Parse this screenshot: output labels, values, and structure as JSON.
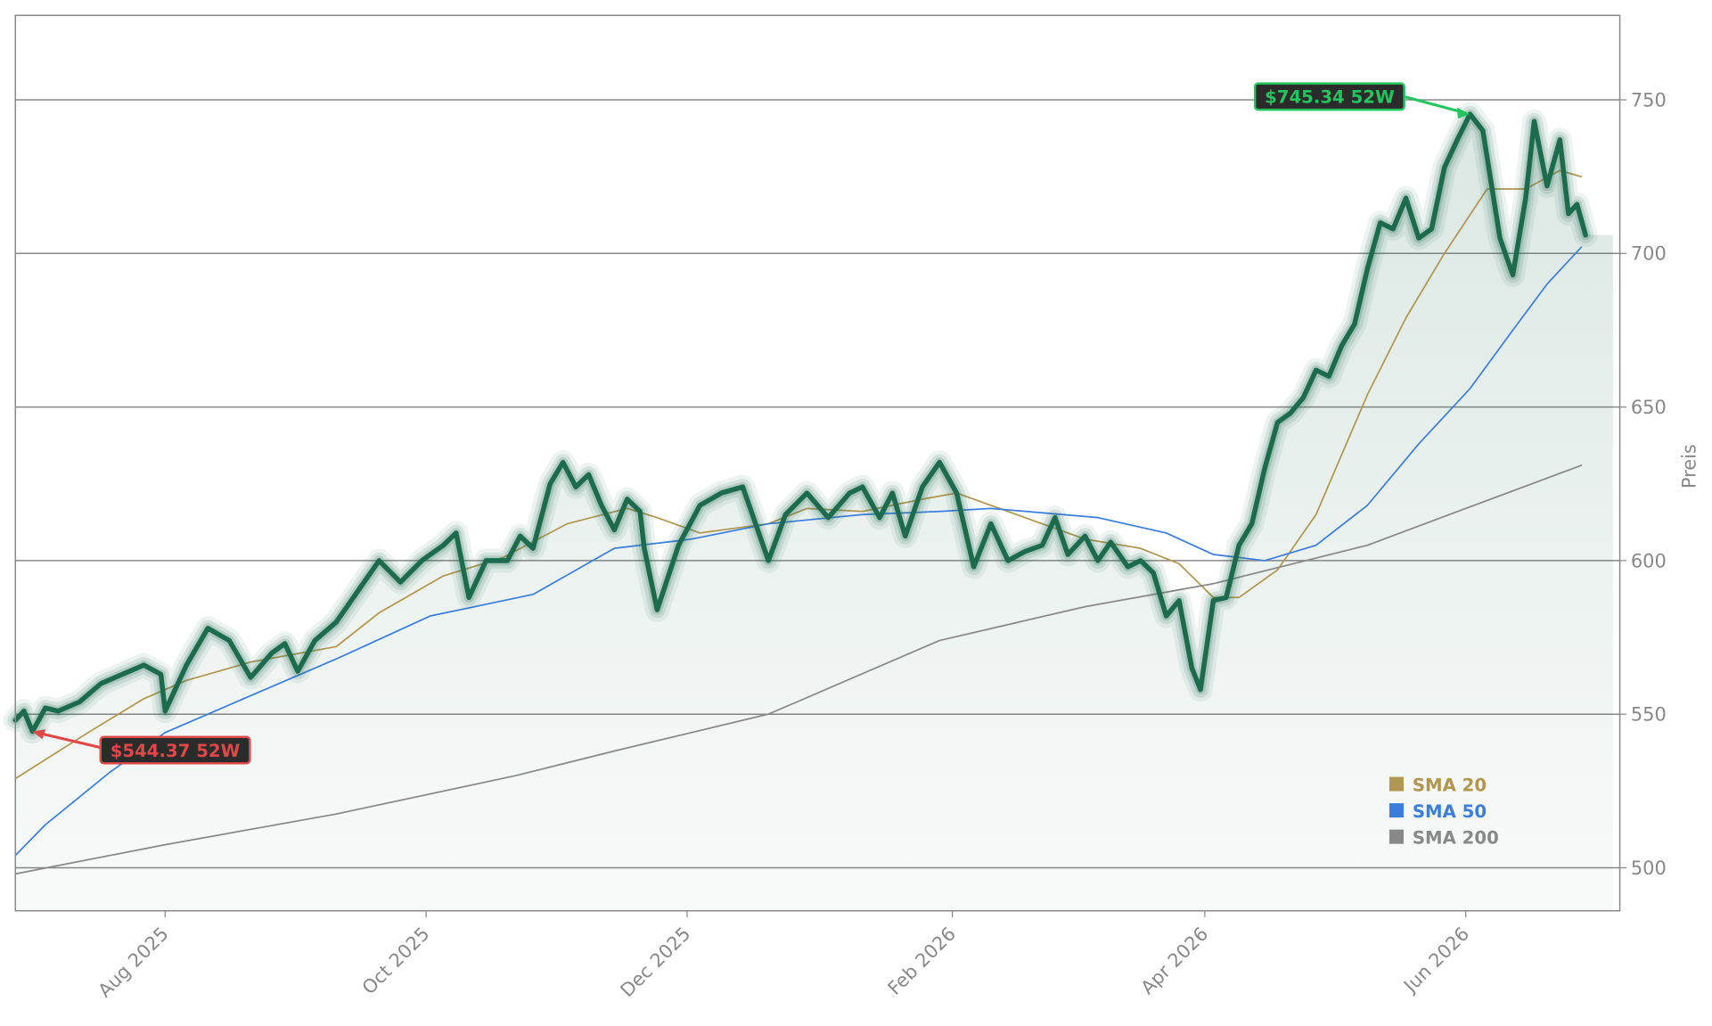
{
  "chart_data": {
    "type": "line",
    "y_label": "Preis",
    "ylim": [
      486,
      777.5
    ],
    "yticks": [
      500,
      550,
      600,
      650,
      700,
      750
    ],
    "xlim": [
      0,
      375
    ],
    "xticks": [
      {
        "value": 35,
        "label": "Aug 2025"
      },
      {
        "value": 96,
        "label": "Oct 2025"
      },
      {
        "value": 157,
        "label": "Dec 2025"
      },
      {
        "value": 219,
        "label": "Feb 2026"
      },
      {
        "value": 278,
        "label": "Apr 2026"
      },
      {
        "value": 339,
        "label": "Jun 2026"
      }
    ],
    "grid": true,
    "legend": "lower right",
    "series": [
      {
        "color": "#1d6b4f",
        "x": [
          0,
          2,
          4,
          7,
          10,
          15,
          20,
          25,
          30,
          34,
          35,
          40,
          45,
          50,
          55,
          60,
          63,
          66,
          70,
          75,
          80,
          85,
          90,
          95,
          100,
          103,
          106,
          110,
          115,
          118,
          121,
          125,
          128,
          131,
          134,
          137,
          140,
          143,
          146,
          147,
          150,
          155,
          160,
          165,
          170,
          173,
          176,
          180,
          185,
          190,
          195,
          198,
          202,
          205,
          208,
          212,
          216,
          220,
          224,
          228,
          232,
          236,
          240,
          243,
          246,
          250,
          253,
          256,
          260,
          263,
          266,
          269,
          272,
          275,
          277,
          280,
          283,
          286,
          289,
          292,
          295,
          298,
          301,
          304,
          307,
          310,
          313,
          316,
          319,
          322,
          325,
          328,
          331,
          334,
          337,
          340,
          343,
          347,
          350,
          353,
          355,
          358,
          361,
          363,
          365,
          367
        ],
        "values": [
          548,
          551,
          544.37,
          552,
          551,
          554,
          560,
          563,
          566,
          563,
          551,
          566,
          578,
          574,
          562,
          570,
          573,
          564,
          574,
          580,
          590,
          600,
          593,
          600,
          605,
          609,
          588,
          600,
          600,
          608,
          604,
          625,
          632,
          624,
          628,
          618,
          610,
          620,
          616,
          604,
          584,
          605,
          618,
          622,
          624,
          612,
          600,
          615,
          622,
          614,
          622,
          624,
          614,
          622,
          608,
          624,
          632,
          622,
          598,
          612,
          600,
          603,
          605,
          614,
          602,
          608,
          600,
          606,
          598,
          600,
          596,
          582,
          587,
          565,
          558,
          587,
          588,
          605,
          612,
          630,
          645,
          648,
          653,
          662,
          660,
          670,
          677,
          695,
          710,
          708,
          718,
          705,
          708,
          728,
          737,
          745.34,
          740,
          705,
          693,
          718,
          743,
          722,
          737,
          713,
          716,
          706
        ]
      },
      {
        "name": "SMA 20",
        "color": "#b0964f",
        "x": [
          0,
          17,
          30,
          40,
          55,
          75,
          85,
          100,
          114,
          129,
          143,
          150,
          160,
          176,
          185,
          198,
          212,
          220,
          236,
          250,
          263,
          272,
          280,
          286,
          295,
          304,
          316,
          325,
          334,
          344,
          353,
          361,
          366
        ],
        "values": [
          529,
          544,
          555,
          561,
          567,
          572,
          583,
          595,
          601,
          612,
          617,
          614,
          609,
          612,
          617,
          616,
          620,
          622,
          614,
          607,
          604,
          599,
          588,
          588,
          597,
          615,
          654,
          679,
          700,
          721,
          721,
          727,
          725
        ]
      },
      {
        "name": "SMA 50",
        "color": "#3b7ddd",
        "x": [
          0,
          7,
          22,
          35,
          55,
          75,
          97,
          121,
          140,
          158,
          176,
          198,
          216,
          228,
          253,
          269,
          280,
          292,
          304,
          316,
          328,
          340,
          350,
          358,
          366
        ],
        "values": [
          504,
          514,
          531,
          544,
          556,
          568,
          582,
          589,
          604,
          607,
          612,
          615,
          616,
          617,
          614,
          609,
          602,
          600,
          605,
          618,
          638,
          656,
          675,
          690,
          702
        ]
      },
      {
        "name": "SMA 200",
        "color": "#888888",
        "x": [
          0,
          35,
          75,
          117,
          140,
          176,
          216,
          250,
          280,
          316,
          340,
          366
        ],
        "values": [
          498,
          507.5,
          517.5,
          530,
          538,
          550,
          574,
          585,
          592.5,
          605,
          617.5,
          631
        ]
      }
    ],
    "annotations": [
      {
        "text": "$745.34 52W",
        "x": 340,
        "y": 745.34,
        "color": "#22c55e"
      },
      {
        "text": "$544.37 52W",
        "x": 4,
        "y": 544.37,
        "color": "#e04848"
      }
    ]
  }
}
